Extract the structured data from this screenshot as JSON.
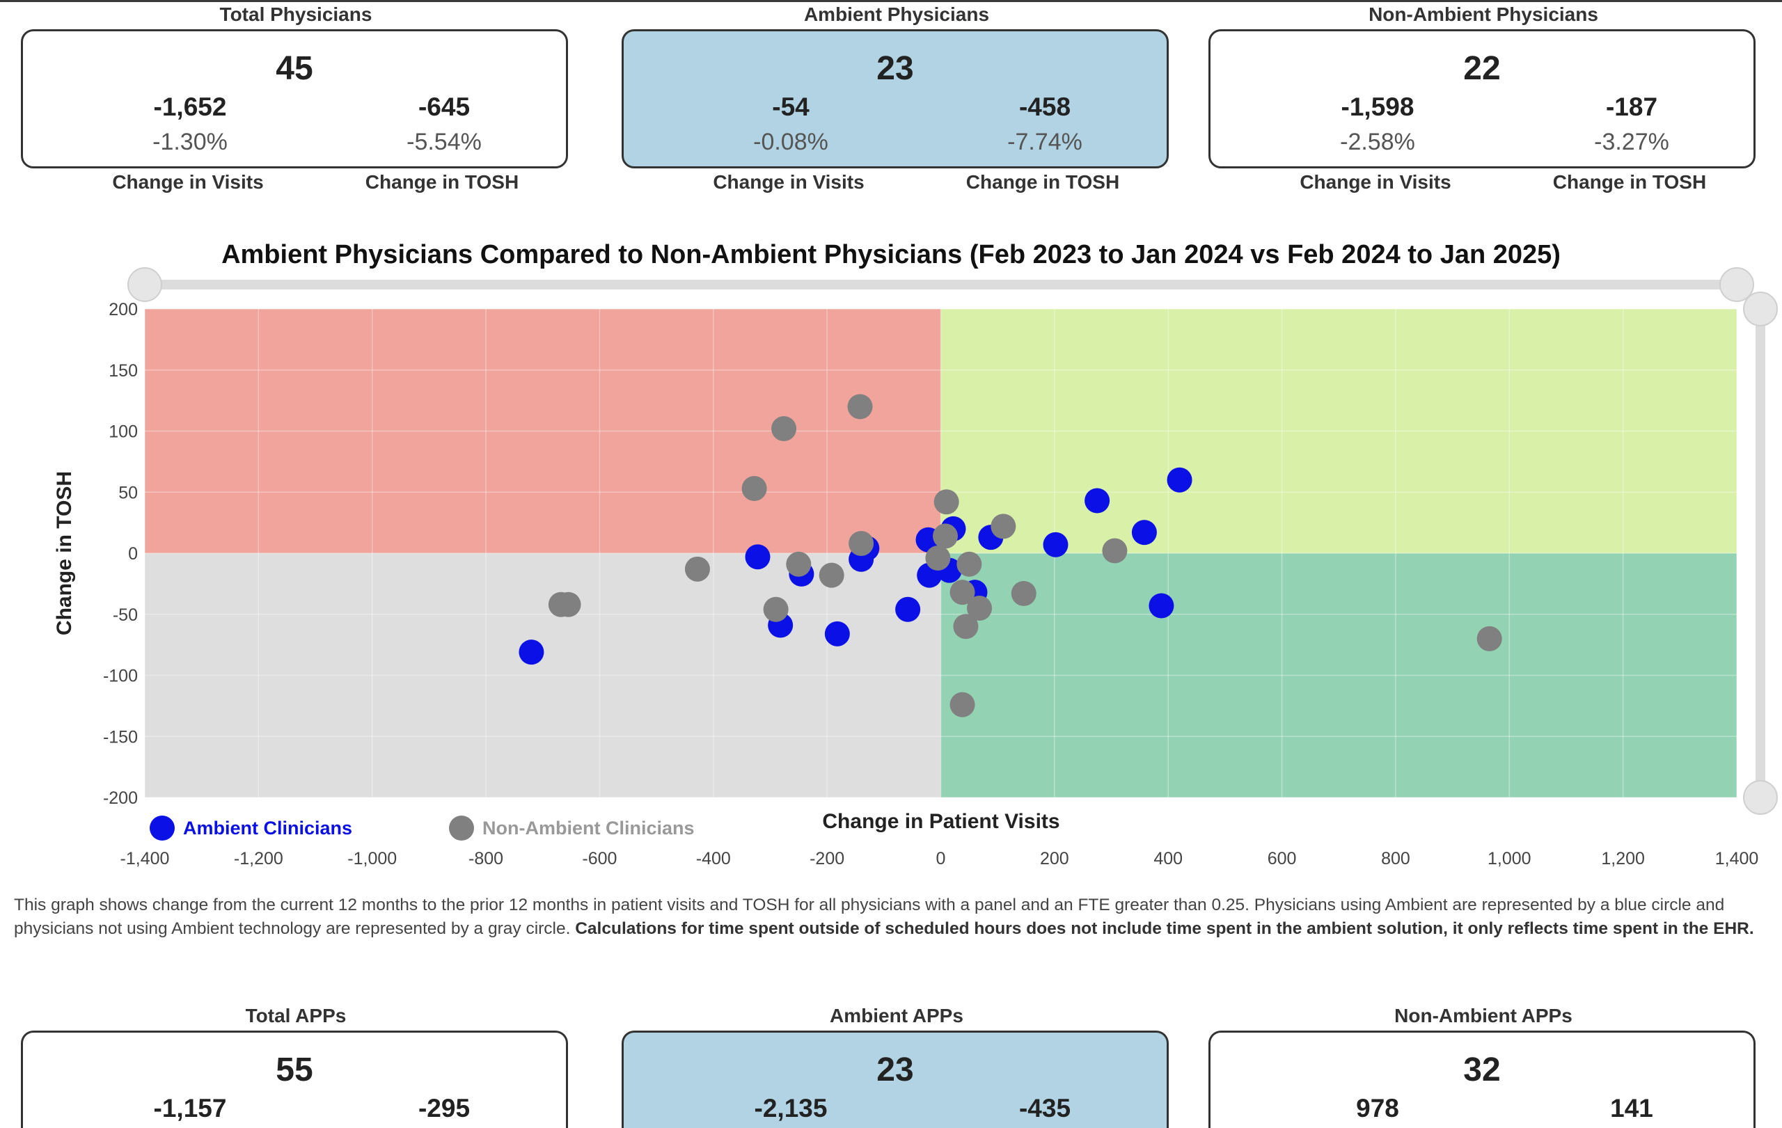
{
  "physicians": {
    "total": {
      "title": "Total Physicians",
      "count": "45",
      "visits_change": "-1,652",
      "visits_pct": "-1.30%",
      "tosh_change": "-645",
      "tosh_pct": "-5.54%"
    },
    "ambient": {
      "title": "Ambient Physicians",
      "count": "23",
      "visits_change": "-54",
      "visits_pct": "-0.08%",
      "tosh_change": "-458",
      "tosh_pct": "-7.74%"
    },
    "non_ambient": {
      "title": "Non-Ambient Physicians",
      "count": "22",
      "visits_change": "-1,598",
      "visits_pct": "-2.58%",
      "tosh_change": "-187",
      "tosh_pct": "-3.27%"
    },
    "label_visits": "Change in Visits",
    "label_tosh": "Change in TOSH"
  },
  "apps": {
    "total": {
      "title": "Total APPs",
      "count": "55",
      "visits_change": "-1,157",
      "tosh_change": "-295"
    },
    "ambient": {
      "title": "Ambient APPs",
      "count": "23",
      "visits_change": "-2,135",
      "tosh_change": "-435"
    },
    "non_ambient": {
      "title": "Non-Ambient APPs",
      "count": "32",
      "visits_change": "978",
      "tosh_change": "141"
    }
  },
  "colors": {
    "ambient": "#0a10e6",
    "non_ambient": "#808080",
    "q_top_left": "#f0a49b",
    "q_top_right": "#d8f0a8",
    "q_bottom_left": "#dedede",
    "q_bottom_right": "#93d3b3",
    "card_ambient_bg": "#b1d3e3"
  },
  "note": {
    "text": "This graph shows change from the current 12 months to the prior 12 months in patient visits and TOSH for all physicians with a panel and an FTE greater than 0.25. Physicians using Ambient are represented by a blue circle and physicians not using Ambient technology are represented by a gray circle. ",
    "bold": "Calculations for time spent outside of scheduled hours does not include time spent in the ambient solution, it only reflects time spent in the EHR."
  },
  "chart_data": {
    "type": "scatter",
    "title": "Ambient Physicians Compared to Non-Ambient Physicians (Feb 2023 to Jan 2024 vs Feb 2024 to Jan 2025)",
    "xlabel": "Change in Patient Visits",
    "ylabel": "Change in TOSH",
    "xlim": [
      -1400,
      1400
    ],
    "ylim": [
      -200,
      200
    ],
    "x_ticks": [
      "-1,400",
      "-1,200",
      "-1,000",
      "-800",
      "-600",
      "-400",
      "-200",
      "0",
      "200",
      "400",
      "600",
      "800",
      "1,000",
      "1,200",
      "1,400"
    ],
    "y_ticks": [
      "200",
      "150",
      "100",
      "50",
      "0",
      "-50",
      "-100",
      "-150",
      "-200"
    ],
    "grid": true,
    "legend_position": "bottom-left",
    "series": [
      {
        "name": "Ambient Clinicians",
        "color": "#0a10e6",
        "points": [
          [
            -720,
            -81
          ],
          [
            -322,
            -3
          ],
          [
            -282,
            -59
          ],
          [
            -245,
            -17
          ],
          [
            -182,
            -66
          ],
          [
            -140,
            -5
          ],
          [
            -130,
            4
          ],
          [
            -58,
            -46
          ],
          [
            -20,
            -18
          ],
          [
            -22,
            11
          ],
          [
            15,
            -14
          ],
          [
            22,
            20
          ],
          [
            60,
            -32
          ],
          [
            88,
            13
          ],
          [
            202,
            7
          ],
          [
            275,
            43
          ],
          [
            358,
            17
          ],
          [
            388,
            -43
          ],
          [
            420,
            60
          ]
        ]
      },
      {
        "name": "Non-Ambient Clinicians",
        "color": "#808080",
        "points": [
          [
            -668,
            -42
          ],
          [
            -655,
            -42
          ],
          [
            -428,
            -13
          ],
          [
            -328,
            53
          ],
          [
            -276,
            102
          ],
          [
            -290,
            -46
          ],
          [
            -250,
            -9
          ],
          [
            -192,
            -18
          ],
          [
            -142,
            120
          ],
          [
            -140,
            8
          ],
          [
            -5,
            -4
          ],
          [
            10,
            42
          ],
          [
            8,
            14
          ],
          [
            38,
            -32
          ],
          [
            50,
            -9
          ],
          [
            68,
            -45
          ],
          [
            44,
            -60
          ],
          [
            38,
            -124
          ],
          [
            110,
            22
          ],
          [
            146,
            -33
          ],
          [
            306,
            2
          ],
          [
            965,
            -70
          ]
        ]
      }
    ]
  }
}
